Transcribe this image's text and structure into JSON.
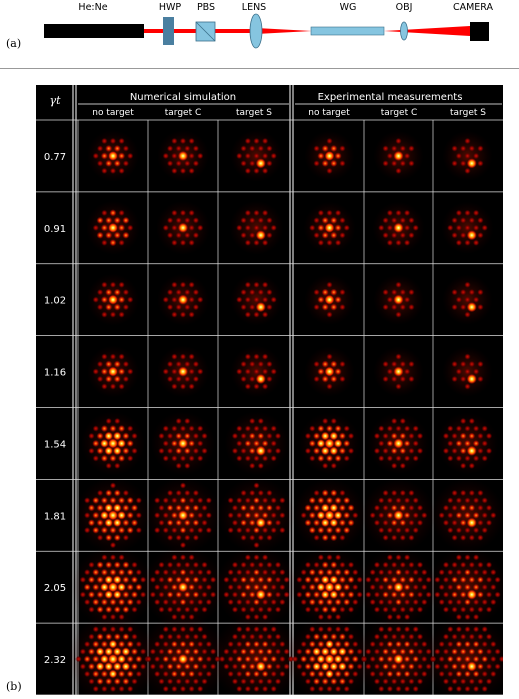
{
  "figure": {
    "panel_a_label": "(a)",
    "panel_b_label": "(b)"
  },
  "setup": {
    "components": [
      "He:Ne",
      "HWP",
      "PBS",
      "LENS",
      "WG",
      "OBJ",
      "CAMERA"
    ],
    "colors": {
      "laser": "#b22222",
      "beam": "#ff0000",
      "hwp": "#4a7fa0",
      "optics": "#86c5e0",
      "body": "#000000"
    }
  },
  "table": {
    "row_header_label": "γt",
    "group_headers": [
      "Numerical simulation",
      "Experimental measurements"
    ],
    "column_headers": [
      "no target",
      "target C",
      "target S",
      "no target",
      "target C",
      "target S"
    ],
    "rows": [
      "0.77",
      "0.91",
      "1.02",
      "1.16",
      "1.54",
      "1.81",
      "2.05",
      "2.32"
    ]
  }
}
